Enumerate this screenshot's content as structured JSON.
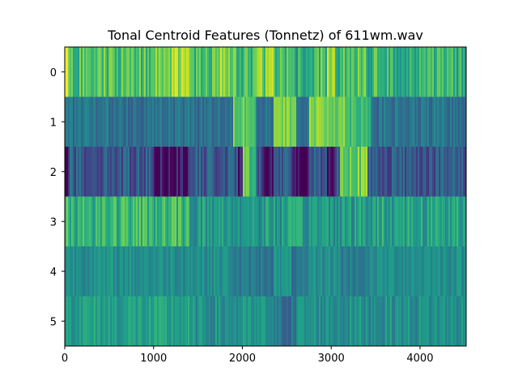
{
  "chart_data": {
    "type": "heatmap",
    "title": "Tonal Centroid Features (Tonnetz) of 611wm.wav",
    "xlabel": "",
    "ylabel": "",
    "x_range": [
      0,
      4520
    ],
    "x_ticks": [
      0,
      1000,
      2000,
      3000,
      4000
    ],
    "x_tick_labels": [
      "0",
      "1000",
      "2000",
      "3000",
      "4000"
    ],
    "rows": [
      0,
      1,
      2,
      3,
      4,
      5
    ],
    "y_tick_labels": [
      "0",
      "1",
      "2",
      "3",
      "4",
      "5"
    ],
    "colormap": "viridis",
    "value_range": [
      -0.25,
      0.25
    ],
    "frames": 4520,
    "row_profiles": [
      {
        "row": 0,
        "mean": 0.1,
        "spread": 0.08,
        "segments": [
          {
            "start": 0,
            "end": 30,
            "level": 0.22
          },
          {
            "start": 1000,
            "end": 1400,
            "level": 0.17
          },
          {
            "start": 1700,
            "end": 1900,
            "level": 0.15
          },
          {
            "start": 2150,
            "end": 2350,
            "level": 0.14
          },
          {
            "start": 2600,
            "end": 2750,
            "level": 0.05
          },
          {
            "start": 2950,
            "end": 3050,
            "level": 0.18
          },
          {
            "start": 3400,
            "end": 3600,
            "level": 0.08
          },
          {
            "start": 3600,
            "end": 4520,
            "level": 0.07
          }
        ]
      },
      {
        "row": 1,
        "mean": -0.06,
        "spread": 0.05,
        "segments": [
          {
            "start": 1900,
            "end": 2150,
            "level": 0.14
          },
          {
            "start": 2350,
            "end": 2600,
            "level": 0.14
          },
          {
            "start": 2750,
            "end": 3150,
            "level": 0.15
          },
          {
            "start": 3150,
            "end": 3450,
            "level": 0.1
          }
        ]
      },
      {
        "row": 2,
        "mean": -0.11,
        "spread": 0.07,
        "segments": [
          {
            "start": 0,
            "end": 40,
            "level": -0.25
          },
          {
            "start": 1000,
            "end": 1400,
            "level": -0.22
          },
          {
            "start": 1950,
            "end": 2000,
            "level": -0.23
          },
          {
            "start": 2000,
            "end": 2150,
            "level": 0.12
          },
          {
            "start": 2200,
            "end": 2350,
            "level": -0.22
          },
          {
            "start": 2550,
            "end": 2750,
            "level": -0.24
          },
          {
            "start": 2950,
            "end": 3050,
            "level": -0.23
          },
          {
            "start": 3100,
            "end": 3400,
            "level": 0.14
          }
        ]
      },
      {
        "row": 3,
        "mean": 0.04,
        "spread": 0.07,
        "segments": [
          {
            "start": 0,
            "end": 1400,
            "level": 0.08
          },
          {
            "start": 1400,
            "end": 3500,
            "level": 0.02
          },
          {
            "start": 3500,
            "end": 4520,
            "level": 0.04
          }
        ]
      },
      {
        "row": 4,
        "mean": 0.0,
        "spread": 0.04,
        "segments": [
          {
            "start": 1900,
            "end": 2350,
            "level": -0.05
          },
          {
            "start": 2550,
            "end": 2750,
            "level": -0.06
          },
          {
            "start": 3100,
            "end": 3450,
            "level": -0.04
          }
        ]
      },
      {
        "row": 5,
        "mean": 0.0,
        "spread": 0.05,
        "segments": [
          {
            "start": 0,
            "end": 1400,
            "level": 0.03
          },
          {
            "start": 2350,
            "end": 2600,
            "level": -0.06
          }
        ]
      }
    ]
  }
}
